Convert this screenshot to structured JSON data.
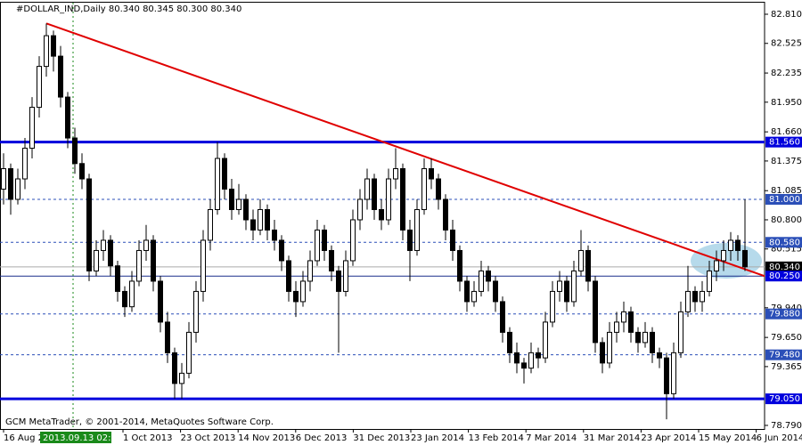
{
  "chart_data": {
    "type": "candlestick",
    "header": "#DOLLAR_IND,Daily  80.340 80.345 80.300 80.340",
    "footer": "GCM MetaTrader, © 2001-2014, MetaQuotes Software Corp.",
    "crosshair_label": "2013.09.13 02:00",
    "x_labels": [
      "16 Aug 2013",
      "1 Oct 2013",
      "23 Oct 2013",
      "14 Nov 2013",
      "6 Dec 2013",
      "31 Dec 2013",
      "23 Jan 2014",
      "13 Feb 2014",
      "7 Mar 2014",
      "31 Mar 2014",
      "23 Apr 2014",
      "15 May 2014",
      "6 Jun 2014"
    ],
    "ylim": [
      78.755,
      82.923
    ],
    "grid": false,
    "yticks": [
      {
        "value": 82.81,
        "label": "82.810"
      },
      {
        "value": 82.525,
        "label": "82.525"
      },
      {
        "value": 82.235,
        "label": "82.235"
      },
      {
        "value": 81.95,
        "label": "81.950"
      },
      {
        "value": 81.66,
        "label": "81.660"
      },
      {
        "value": 81.375,
        "label": "81.375"
      },
      {
        "value": 81.085,
        "label": "81.085"
      },
      {
        "value": 80.8,
        "label": "80.800"
      },
      {
        "value": 80.515,
        "label": "80.515"
      },
      {
        "value": 79.94,
        "label": "79.940"
      },
      {
        "value": 79.65,
        "label": "79.650"
      },
      {
        "value": 79.365,
        "label": "79.365"
      },
      {
        "value": 78.79,
        "label": "78.790"
      }
    ],
    "levels": [
      {
        "value": 81.56,
        "label": "81.560",
        "style": "thick"
      },
      {
        "value": 81.0,
        "label": "81.000",
        "style": "dashed"
      },
      {
        "value": 80.58,
        "label": "80.580",
        "style": "dashed"
      },
      {
        "value": 80.34,
        "label": "80.340",
        "style": "bid"
      },
      {
        "value": 80.25,
        "label": "80.250",
        "style": "solid"
      },
      {
        "value": 79.88,
        "label": "79.880",
        "style": "dashed"
      },
      {
        "value": 79.48,
        "label": "79.480",
        "style": "dashed"
      },
      {
        "value": 79.05,
        "label": "79.050",
        "style": "thick"
      }
    ],
    "trendline": {
      "color": "#e00000",
      "start": {
        "bar": 6,
        "price": 82.72
      },
      "end": {
        "bar": 106.75,
        "price": 80.25
      }
    },
    "candles": [
      [
        81.1,
        81.45,
        80.95,
        81.3
      ],
      [
        81.3,
        81.35,
        80.85,
        81.0
      ],
      [
        81.0,
        81.3,
        80.95,
        81.2
      ],
      [
        81.2,
        81.6,
        81.1,
        81.5
      ],
      [
        81.5,
        82.0,
        81.4,
        81.9
      ],
      [
        81.9,
        82.4,
        81.8,
        82.3
      ],
      [
        82.3,
        82.72,
        82.2,
        82.6
      ],
      [
        82.6,
        82.65,
        82.25,
        82.4
      ],
      [
        82.4,
        82.5,
        81.9,
        82.0
      ],
      [
        82.0,
        82.05,
        81.5,
        81.6
      ],
      [
        81.6,
        81.7,
        81.25,
        81.35
      ],
      [
        81.35,
        81.45,
        81.1,
        81.2
      ],
      [
        81.2,
        81.25,
        80.2,
        80.3
      ],
      [
        80.3,
        80.6,
        80.25,
        80.5
      ],
      [
        80.5,
        80.7,
        80.4,
        80.6
      ],
      [
        80.6,
        80.65,
        80.25,
        80.35
      ],
      [
        80.35,
        80.4,
        80.0,
        80.1
      ],
      [
        80.1,
        80.15,
        79.85,
        79.95
      ],
      [
        79.95,
        80.3,
        79.9,
        80.2
      ],
      [
        80.2,
        80.6,
        80.15,
        80.5
      ],
      [
        80.5,
        80.75,
        80.4,
        80.6
      ],
      [
        80.6,
        80.65,
        80.1,
        80.2
      ],
      [
        80.2,
        80.25,
        79.7,
        79.8
      ],
      [
        79.8,
        79.9,
        79.4,
        79.5
      ],
      [
        79.5,
        79.55,
        79.05,
        79.2
      ],
      [
        79.2,
        79.4,
        79.05,
        79.3
      ],
      [
        79.3,
        79.8,
        79.25,
        79.7
      ],
      [
        79.7,
        80.2,
        79.6,
        80.1
      ],
      [
        80.1,
        80.7,
        80.0,
        80.6
      ],
      [
        80.6,
        81.0,
        80.5,
        80.9
      ],
      [
        80.9,
        81.56,
        80.85,
        81.4
      ],
      [
        81.4,
        81.45,
        81.0,
        81.1
      ],
      [
        81.1,
        81.2,
        80.8,
        80.9
      ],
      [
        80.9,
        81.15,
        80.85,
        81.0
      ],
      [
        81.0,
        81.05,
        80.7,
        80.8
      ],
      [
        80.8,
        80.9,
        80.6,
        80.7
      ],
      [
        80.7,
        81.0,
        80.65,
        80.9
      ],
      [
        80.9,
        80.95,
        80.6,
        80.7
      ],
      [
        80.7,
        80.8,
        80.5,
        80.6
      ],
      [
        80.6,
        80.65,
        80.3,
        80.4
      ],
      [
        80.4,
        80.45,
        80.0,
        80.1
      ],
      [
        80.1,
        80.2,
        79.85,
        80.0
      ],
      [
        80.0,
        80.3,
        79.95,
        80.2
      ],
      [
        80.2,
        80.5,
        80.1,
        80.4
      ],
      [
        80.4,
        80.8,
        80.35,
        80.7
      ],
      [
        80.7,
        80.75,
        80.4,
        80.5
      ],
      [
        80.5,
        80.55,
        80.2,
        80.3
      ],
      [
        80.3,
        80.35,
        79.5,
        80.1
      ],
      [
        80.1,
        80.5,
        80.05,
        80.4
      ],
      [
        80.4,
        80.9,
        80.35,
        80.8
      ],
      [
        80.8,
        81.1,
        80.7,
        81.0
      ],
      [
        81.0,
        81.3,
        80.9,
        81.2
      ],
      [
        81.2,
        81.25,
        80.8,
        80.9
      ],
      [
        80.9,
        81.0,
        80.7,
        80.8
      ],
      [
        80.8,
        81.3,
        80.75,
        81.2
      ],
      [
        81.2,
        81.5,
        81.1,
        81.3
      ],
      [
        81.3,
        81.35,
        80.6,
        80.7
      ],
      [
        80.7,
        80.8,
        80.2,
        80.5
      ],
      [
        80.5,
        81.0,
        80.45,
        80.9
      ],
      [
        80.9,
        81.4,
        80.85,
        81.3
      ],
      [
        81.3,
        81.4,
        81.1,
        81.2
      ],
      [
        81.2,
        81.25,
        80.9,
        81.0
      ],
      [
        81.0,
        81.05,
        80.6,
        80.7
      ],
      [
        80.7,
        80.8,
        80.4,
        80.5
      ],
      [
        80.5,
        80.55,
        80.1,
        80.2
      ],
      [
        80.2,
        80.25,
        79.9,
        80.0
      ],
      [
        80.0,
        80.2,
        79.95,
        80.1
      ],
      [
        80.1,
        80.4,
        80.05,
        80.3
      ],
      [
        80.3,
        80.35,
        80.1,
        80.2
      ],
      [
        80.2,
        80.25,
        79.9,
        80.0
      ],
      [
        80.0,
        80.05,
        79.6,
        79.7
      ],
      [
        79.7,
        79.75,
        79.4,
        79.5
      ],
      [
        79.5,
        79.6,
        79.3,
        79.4
      ],
      [
        79.4,
        79.45,
        79.2,
        79.35
      ],
      [
        79.35,
        79.6,
        79.3,
        79.5
      ],
      [
        79.5,
        79.55,
        79.35,
        79.45
      ],
      [
        79.45,
        79.9,
        79.4,
        79.8
      ],
      [
        79.8,
        80.2,
        79.75,
        80.1
      ],
      [
        80.1,
        80.3,
        80.0,
        80.2
      ],
      [
        80.2,
        80.25,
        79.9,
        80.0
      ],
      [
        80.0,
        80.4,
        79.95,
        80.3
      ],
      [
        80.3,
        80.7,
        80.25,
        80.5
      ],
      [
        80.5,
        80.55,
        80.1,
        80.2
      ],
      [
        80.2,
        80.25,
        79.5,
        79.6
      ],
      [
        79.6,
        79.65,
        79.3,
        79.4
      ],
      [
        79.4,
        79.8,
        79.35,
        79.7
      ],
      [
        79.7,
        79.9,
        79.6,
        79.8
      ],
      [
        79.8,
        80.0,
        79.7,
        79.9
      ],
      [
        79.9,
        79.95,
        79.6,
        79.7
      ],
      [
        79.7,
        79.75,
        79.5,
        79.6
      ],
      [
        79.6,
        79.8,
        79.55,
        79.7
      ],
      [
        79.7,
        79.75,
        79.4,
        79.5
      ],
      [
        79.5,
        79.55,
        79.35,
        79.45
      ],
      [
        79.45,
        79.5,
        78.85,
        79.1
      ],
      [
        79.1,
        79.6,
        79.05,
        79.5
      ],
      [
        79.5,
        80.0,
        79.45,
        79.9
      ],
      [
        79.9,
        80.35,
        79.85,
        80.1
      ],
      [
        80.1,
        80.15,
        79.9,
        80.0
      ],
      [
        80.0,
        80.2,
        79.9,
        80.1
      ],
      [
        80.1,
        80.4,
        80.05,
        80.3
      ],
      [
        80.3,
        80.5,
        80.2,
        80.4
      ],
      [
        80.4,
        80.6,
        80.3,
        80.5
      ],
      [
        80.5,
        80.68,
        80.4,
        80.6
      ],
      [
        80.6,
        80.65,
        80.4,
        80.5
      ],
      [
        80.5,
        81.0,
        80.3,
        80.34
      ]
    ]
  }
}
